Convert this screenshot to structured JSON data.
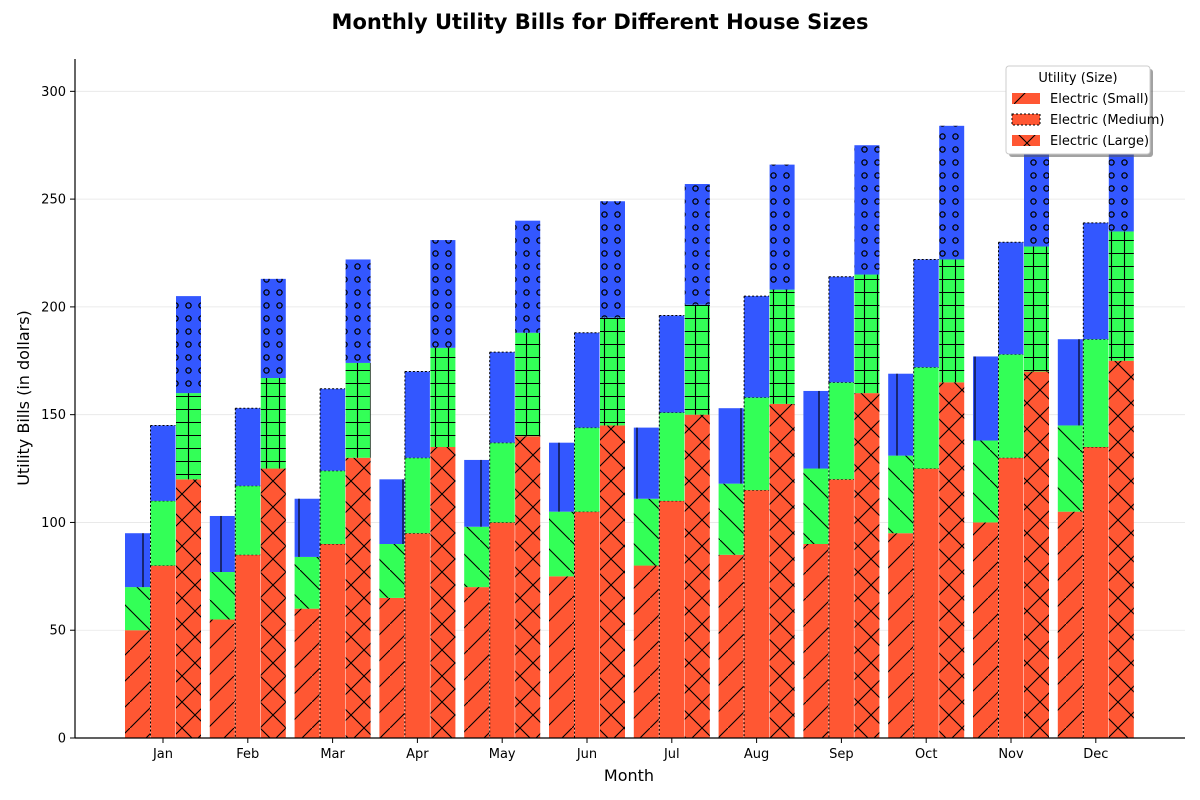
{
  "chart_data": {
    "type": "bar",
    "title": "Monthly Utility Bills for Different House Sizes",
    "xlabel": "Month",
    "ylabel": "Utility Bills (in dollars)",
    "ylim": [
      0,
      315
    ],
    "yticks": [
      0,
      50,
      100,
      150,
      200,
      250,
      300
    ],
    "grid": "horizontal",
    "legend_position": "top-right",
    "legend_title": "Utility (Size)",
    "legend_entries": [
      "Electric (Small)",
      "Electric (Medium)",
      "Electric (Large)"
    ],
    "categories": [
      "Jan",
      "Feb",
      "Mar",
      "Apr",
      "May",
      "Jun",
      "Jul",
      "Aug",
      "Sep",
      "Oct",
      "Nov",
      "Dec"
    ],
    "stacked": true,
    "stack_colors": [
      "#ff5733",
      "#33ff57",
      "#3357ff"
    ],
    "groups": [
      {
        "size": "Small",
        "hatch": "diagonal",
        "electric": [
          50,
          55,
          60,
          65,
          70,
          75,
          80,
          85,
          90,
          95,
          100,
          105
        ],
        "second": [
          20,
          22,
          24,
          25,
          28,
          30,
          31,
          33,
          35,
          36,
          38,
          40
        ],
        "third": [
          25,
          26,
          27,
          30,
          31,
          32,
          33,
          35,
          36,
          38,
          39,
          40
        ]
      },
      {
        "size": "Medium",
        "hatch": "dotted",
        "electric": [
          80,
          85,
          90,
          95,
          100,
          105,
          110,
          115,
          120,
          125,
          130,
          135
        ],
        "second": [
          30,
          32,
          34,
          35,
          37,
          39,
          41,
          43,
          45,
          47,
          48,
          50
        ],
        "third": [
          35,
          36,
          38,
          40,
          42,
          44,
          45,
          47,
          49,
          50,
          52,
          54
        ]
      },
      {
        "size": "Large",
        "hatch": "cross",
        "electric": [
          120,
          125,
          130,
          135,
          140,
          145,
          150,
          155,
          160,
          165,
          170,
          175
        ],
        "second": [
          40,
          42,
          44,
          46,
          48,
          50,
          51,
          53,
          55,
          57,
          58,
          60
        ],
        "third": [
          45,
          46,
          48,
          50,
          52,
          54,
          56,
          58,
          60,
          62,
          64,
          66
        ]
      }
    ]
  }
}
